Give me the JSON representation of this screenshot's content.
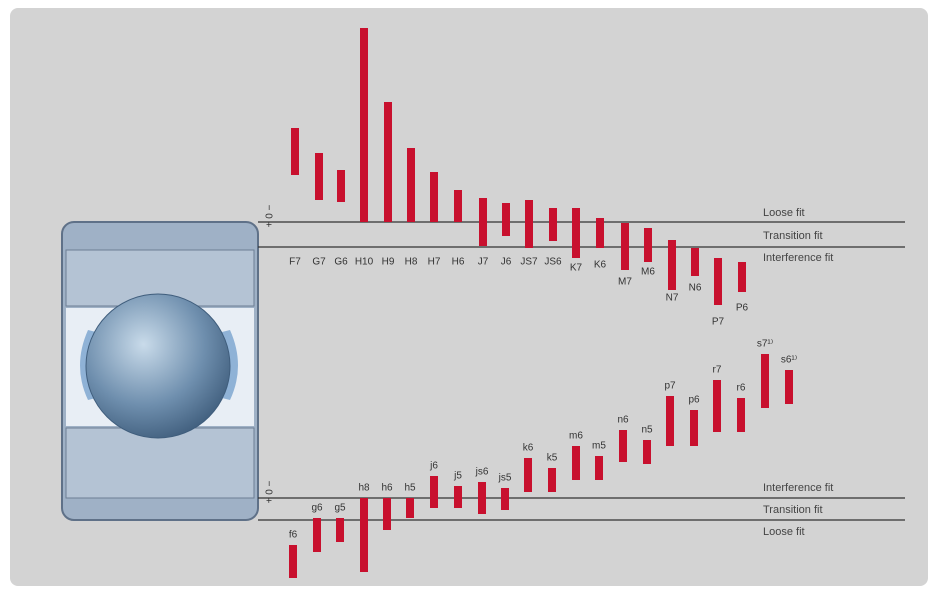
{
  "axis_marker": "+ 0 −",
  "housing": {
    "lines": [
      "Loose fit",
      "Transition fit",
      "Interference fit"
    ],
    "labels": [
      "F7",
      "G7",
      "G6",
      "H10",
      "H9",
      "H8",
      "H7",
      "H6",
      "J7",
      "J6",
      "JS7",
      "JS6",
      "K7",
      "K6",
      "M7",
      "M6",
      "N7",
      "N6",
      "P7",
      "P6"
    ]
  },
  "shaft": {
    "lines": [
      "Interference fit",
      "Transition fit",
      "Loose fit"
    ],
    "labels": [
      "f6",
      "g6",
      "g5",
      "h8",
      "h6",
      "h5",
      "j6",
      "j5",
      "js6",
      "js5",
      "k6",
      "k5",
      "m6",
      "m5",
      "n6",
      "n5",
      "p7",
      "p6",
      "r7",
      "r6",
      "s7¹⁾",
      "s6¹⁾"
    ]
  }
}
